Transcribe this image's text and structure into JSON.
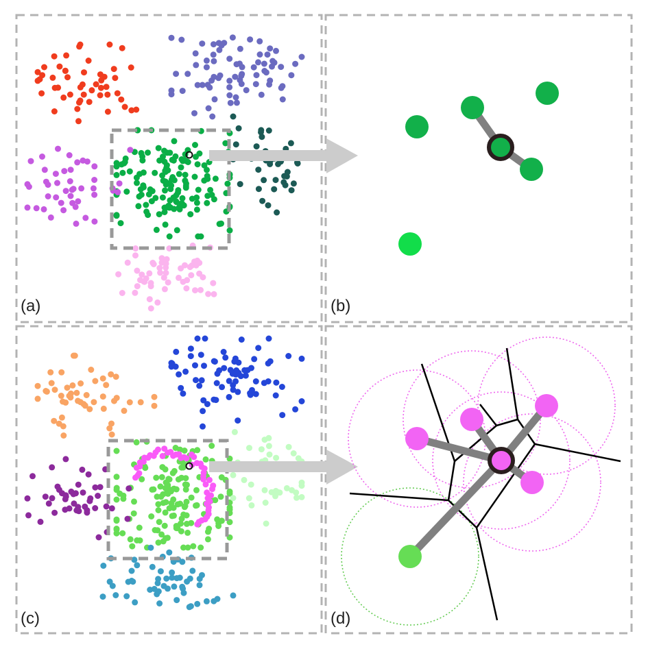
{
  "panels": [
    {
      "id": "a",
      "label": "(a)"
    },
    {
      "id": "b",
      "label": "(b)"
    },
    {
      "id": "c",
      "label": "(c)"
    },
    {
      "id": "d",
      "label": "(d)"
    }
  ],
  "colors": {
    "frame": "#b3b3b3",
    "zoom_box": "#999999",
    "arrow": "#cccccc",
    "edge": "#808080",
    "voronoi": "#000000",
    "focus_ring": "#2a1e1e",
    "a_clusters": [
      "#f03c1e",
      "#6b6bc0",
      "#0aae46",
      "#c55ae0",
      "#1c5a55",
      "#fbb4ee"
    ],
    "c_clusters": [
      "#f9a464",
      "#2446d8",
      "#66dd55",
      "#8c2a9c",
      "#c2fcc2",
      "#fa5af8",
      "#3c9ec4"
    ],
    "b_nodes": "#12b04a",
    "b_nodes_light": "#12dd4a",
    "d_nodes": "#f264f4",
    "d_node_green": "#66dd55",
    "d_circle_pink": "#ee66ee",
    "d_circle_green": "#66cc55"
  }
}
